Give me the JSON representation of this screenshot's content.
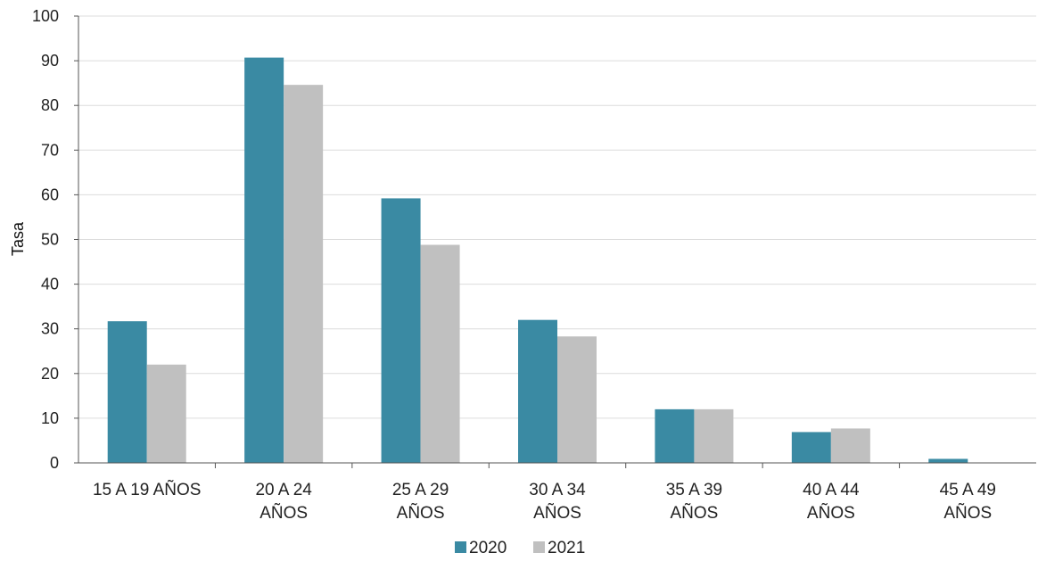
{
  "chart_data": {
    "type": "bar",
    "title": "",
    "xlabel": "",
    "ylabel": "Tasa",
    "ylim": [
      0,
      100
    ],
    "yticks": [
      0,
      10,
      20,
      30,
      40,
      50,
      60,
      70,
      80,
      90,
      100
    ],
    "grid": true,
    "legend_position": "bottom",
    "categories": [
      [
        "15 A 19 AÑOS"
      ],
      [
        "20 A 24",
        "AÑOS"
      ],
      [
        "25 A 29",
        "AÑOS"
      ],
      [
        "30 A 34",
        "AÑOS"
      ],
      [
        "35 A 39",
        "AÑOS"
      ],
      [
        "40 A 44",
        "AÑOS"
      ],
      [
        "45 A 49",
        "AÑOS"
      ]
    ],
    "series": [
      {
        "name": "2020",
        "color": "#3a8aa3",
        "values": [
          31.7,
          90.7,
          59.2,
          32.0,
          12.0,
          6.9,
          0.9
        ]
      },
      {
        "name": "2021",
        "color": "#c0c0c0",
        "values": [
          22.0,
          84.6,
          48.8,
          28.3,
          12.0,
          7.7,
          0
        ]
      }
    ]
  }
}
